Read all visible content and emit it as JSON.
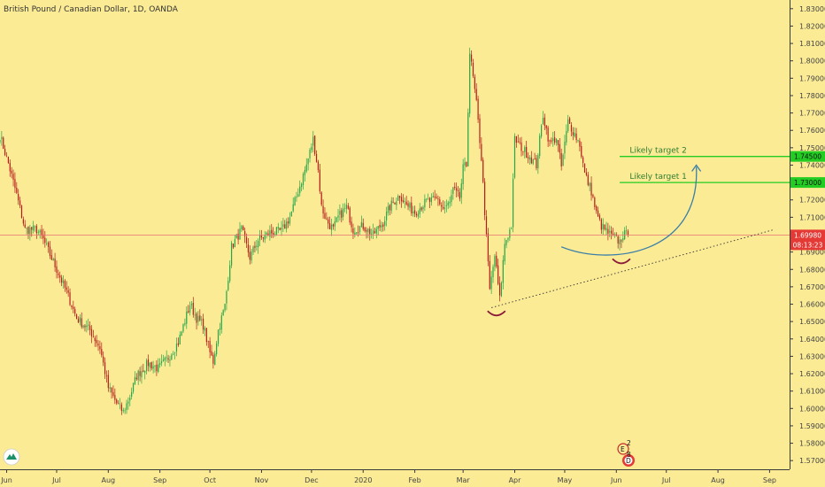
{
  "header": {
    "symbol_title": "British Pound / Canadian Dollar, 1D, OANDA"
  },
  "colors": {
    "background": "#fbeb95",
    "up_candle": "#26a64a",
    "down_candle": "#b71c1c",
    "target_line": "#22cc22",
    "current_line": "#e57373",
    "price_badge": "#e53935",
    "curve": "#3a7fa8",
    "arc": "#8b1a3a",
    "trendline": "#333333"
  },
  "chart_data": {
    "type": "candlestick",
    "title": "British Pound / Canadian Dollar, 1D, OANDA",
    "ylim": [
      1.565,
      1.835
    ],
    "y_ticks": [
      "1.83000",
      "1.82000",
      "1.81000",
      "1.80000",
      "1.79000",
      "1.78000",
      "1.77000",
      "1.76000",
      "1.75000",
      "1.74000",
      "1.72000",
      "1.71000",
      "1.69000",
      "1.68000",
      "1.67000",
      "1.66000",
      "1.65000",
      "1.64000",
      "1.63000",
      "1.62000",
      "1.61000",
      "1.60000",
      "1.59000",
      "1.58000",
      "1.57000"
    ],
    "x_ticks": [
      "Jun",
      "Jul",
      "Aug",
      "Sep",
      "Oct",
      "Nov",
      "Dec",
      "2020",
      "Feb",
      "Mar",
      "Apr",
      "May",
      "Jun",
      "Jul",
      "Aug",
      "Sep"
    ],
    "x_range_days": [
      -4,
      470
    ],
    "x_tick_days": [
      0,
      30,
      61,
      92,
      122,
      153,
      183,
      214,
      245,
      274,
      305,
      335,
      366,
      396,
      427,
      458
    ],
    "price_path": [
      [
        -4,
        1.757
      ],
      [
        1,
        1.741
      ],
      [
        6,
        1.723
      ],
      [
        11,
        1.703
      ],
      [
        18,
        1.703
      ],
      [
        22,
        1.697
      ],
      [
        30,
        1.68
      ],
      [
        36,
        1.667
      ],
      [
        42,
        1.652
      ],
      [
        50,
        1.645
      ],
      [
        56,
        1.635
      ],
      [
        61,
        1.612
      ],
      [
        66,
        1.603
      ],
      [
        70,
        1.598
      ],
      [
        74,
        1.607
      ],
      [
        78,
        1.619
      ],
      [
        85,
        1.626
      ],
      [
        91,
        1.623
      ],
      [
        96,
        1.628
      ],
      [
        103,
        1.638
      ],
      [
        110,
        1.66
      ],
      [
        114,
        1.652
      ],
      [
        118,
        1.648
      ],
      [
        122,
        1.632
      ],
      [
        124,
        1.627
      ],
      [
        127,
        1.645
      ],
      [
        131,
        1.659
      ],
      [
        135,
        1.693
      ],
      [
        141,
        1.703
      ],
      [
        146,
        1.687
      ],
      [
        151,
        1.697
      ],
      [
        158,
        1.701
      ],
      [
        165,
        1.702
      ],
      [
        170,
        1.71
      ],
      [
        176,
        1.728
      ],
      [
        180,
        1.74
      ],
      [
        184,
        1.755
      ],
      [
        187,
        1.737
      ],
      [
        189,
        1.716
      ],
      [
        192,
        1.708
      ],
      [
        196,
        1.703
      ],
      [
        199,
        1.71
      ],
      [
        204,
        1.716
      ],
      [
        208,
        1.703
      ],
      [
        214,
        1.705
      ],
      [
        220,
        1.7
      ],
      [
        226,
        1.707
      ],
      [
        230,
        1.716
      ],
      [
        236,
        1.723
      ],
      [
        240,
        1.717
      ],
      [
        245,
        1.713
      ],
      [
        252,
        1.719
      ],
      [
        259,
        1.72
      ],
      [
        262,
        1.715
      ],
      [
        266,
        1.718
      ],
      [
        268,
        1.726
      ],
      [
        272,
        1.721
      ],
      [
        274,
        1.738
      ],
      [
        276,
        1.74
      ],
      [
        278,
        1.805
      ],
      [
        282,
        1.775
      ],
      [
        285,
        1.744
      ],
      [
        288,
        1.698
      ],
      [
        290,
        1.668
      ],
      [
        293,
        1.688
      ],
      [
        296,
        1.663
      ],
      [
        299,
        1.695
      ],
      [
        303,
        1.705
      ],
      [
        305,
        1.755
      ],
      [
        310,
        1.749
      ],
      [
        314,
        1.745
      ],
      [
        318,
        1.74
      ],
      [
        322,
        1.769
      ],
      [
        326,
        1.752
      ],
      [
        330,
        1.756
      ],
      [
        333,
        1.739
      ],
      [
        337,
        1.765
      ],
      [
        341,
        1.758
      ],
      [
        344,
        1.752
      ],
      [
        347,
        1.735
      ],
      [
        351,
        1.725
      ],
      [
        354,
        1.712
      ],
      [
        357,
        1.705
      ],
      [
        360,
        1.702
      ],
      [
        363,
        1.699
      ],
      [
        365,
        1.698
      ],
      [
        368,
        1.696
      ],
      [
        370,
        1.7
      ],
      [
        373,
        1.7
      ]
    ],
    "current_price": "1.69980",
    "countdown": "08:13:23",
    "targets": [
      {
        "label": "Likely target 2",
        "price": "1.74500"
      },
      {
        "label": "Likely target 1",
        "price": "1.73000"
      }
    ],
    "trendline": {
      "from": [
        291,
        1.658
      ],
      "to": [
        461,
        1.703
      ]
    },
    "arrow_curve": {
      "from": [
        333,
        1.693
      ],
      "to": [
        414,
        1.74
      ]
    },
    "lows": [
      {
        "day": 294,
        "price": 1.654
      },
      {
        "day": 369,
        "price": 1.684
      }
    ],
    "legend": "none",
    "grid": false
  },
  "badges": {
    "top_count": "2",
    "bottom_count": "8"
  }
}
